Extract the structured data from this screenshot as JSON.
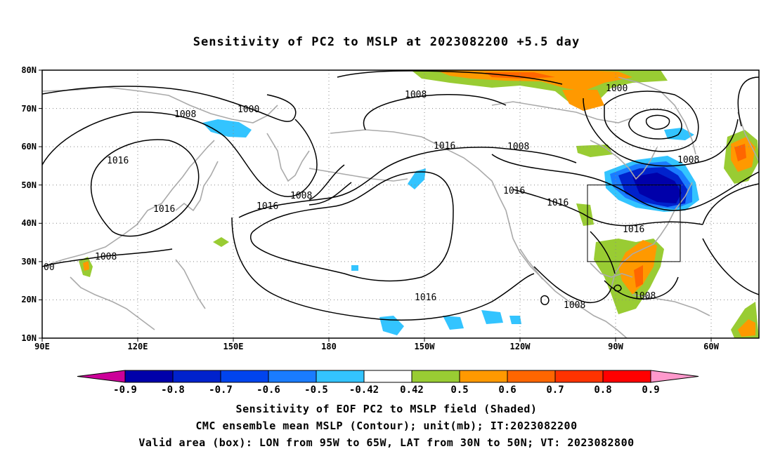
{
  "title": "Sensitivity of PC2 to MSLP at 2023082200 +5.5 day",
  "lat_labels": [
    "80N",
    "70N",
    "60N",
    "50N",
    "40N",
    "30N",
    "20N",
    "10N"
  ],
  "lon_labels": [
    "90E",
    "120E",
    "150E",
    "180",
    "150W",
    "120W",
    "90W",
    "60W"
  ],
  "contour_labels": [
    "1008",
    "1000",
    "1016",
    "1016",
    "1008",
    "1000",
    "1008",
    "1016",
    "1008",
    "1016",
    "1016",
    "1016",
    "1008",
    "1008",
    "1016",
    "1008",
    "1008",
    "00"
  ],
  "colorbar": {
    "labels": [
      "-0.9",
      "-0.8",
      "-0.7",
      "-0.6",
      "-0.5",
      "-0.42",
      "0.42",
      "0.5",
      "0.6",
      "0.7",
      "0.8",
      "0.9"
    ],
    "colors": [
      "#cc0099",
      "#0000aa",
      "#0022cc",
      "#0044ee",
      "#1a7cff",
      "#33c4ff",
      "#ffffff",
      "#99cc33",
      "#ff9900",
      "#ff6600",
      "#ff3300",
      "#ff0000",
      "#ff99cc"
    ]
  },
  "valid_box": {
    "lon": [
      -95,
      -65
    ],
    "lat": [
      30,
      50
    ]
  },
  "captions": [
    "Sensitivity of EOF PC2 to MSLP field (Shaded)",
    "CMC ensemble mean MSLP (Contour); unit(mb); IT:2023082200",
    "Valid area (box): LON from 95W to 65W, LAT from 30N to 50N; VT: 2023082800"
  ]
}
